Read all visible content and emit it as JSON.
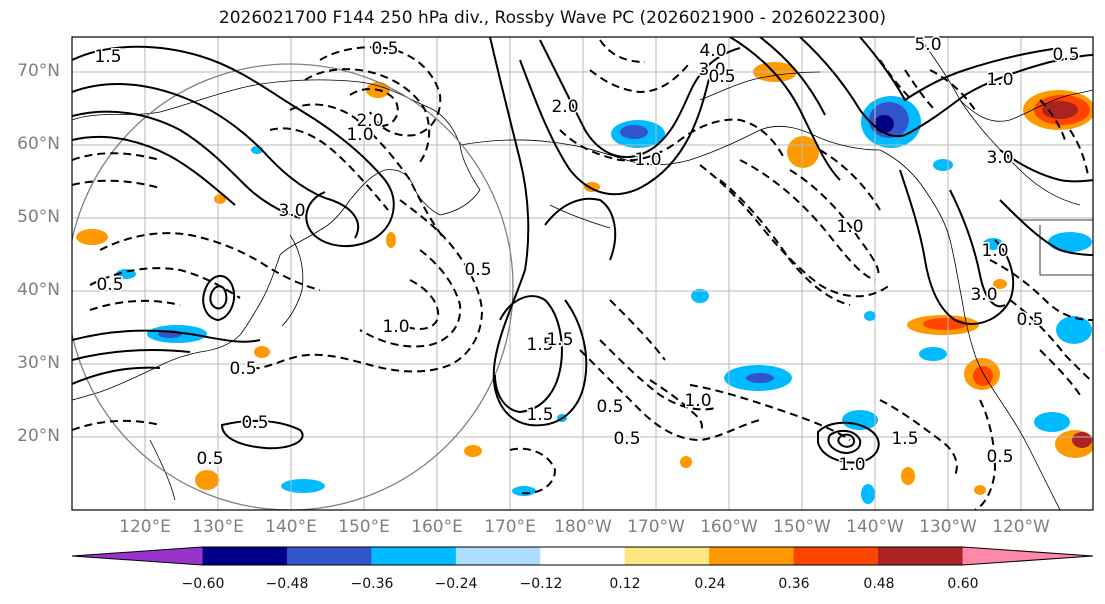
{
  "title": "2026021700 F144 250 hPa div., Rossby Wave PC (2026021900 - 2026022300)",
  "lat_labels": [
    "70°N",
    "60°N",
    "50°N",
    "40°N",
    "30°N",
    "20°N"
  ],
  "lon_labels": [
    "120°E",
    "130°E",
    "140°E",
    "150°E",
    "160°E",
    "170°E",
    "180°W",
    "170°W",
    "160°W",
    "150°W",
    "140°W",
    "130°W",
    "120°W"
  ],
  "contour_labels": [
    "1.5",
    "0.5",
    "4.0",
    "3.0",
    "5.0",
    "0.5",
    "1.0",
    "1.0",
    "2.0",
    "2.0",
    "1.0",
    "3.0",
    "3.0",
    "0.5",
    "1.0",
    "1.5",
    "0.5",
    "1.0",
    "1.5",
    "0.5",
    "0.5",
    "0.5",
    "1.0",
    "1.5",
    "0.5",
    "1.0",
    "3.0",
    "1.0",
    "0.5",
    "1.5",
    "0.5",
    "0.5",
    "0.5"
  ],
  "colorbar": {
    "ticks": [
      "−0.60",
      "−0.48",
      "−0.36",
      "−0.24",
      "−0.12",
      "0.12",
      "0.24",
      "0.36",
      "0.48",
      "0.60"
    ],
    "colors": [
      "#9933cc",
      "#000088",
      "#3355cc",
      "#00bbff",
      "#aaddff",
      "#ffffff",
      "#ffe680",
      "#ff9900",
      "#ff4400",
      "#aa2222",
      "#ff88aa"
    ]
  },
  "colors": {
    "blue_fill": "#00bbff",
    "deep_blue": "#3355cc",
    "navy": "#000088",
    "orange": "#ff9900",
    "red_orange": "#ff4400",
    "dark_red": "#aa2222",
    "yellow": "#ffe680"
  }
}
